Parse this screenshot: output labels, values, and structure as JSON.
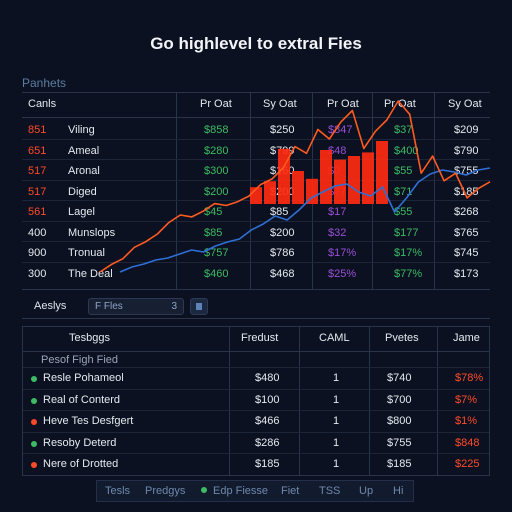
{
  "title": "Go highlevel to extral Fies",
  "section_label": "Panhets",
  "top_table": {
    "headers": [
      "Canls",
      "Pr Oat",
      "Sy Oat",
      "Pr Oat",
      "Pr Oat",
      "Sy Oat"
    ],
    "rows": [
      {
        "num": "851",
        "num_color": "#ff4a2a",
        "name": "Viling",
        "c1": "$858",
        "c1_color": "#3dbb63",
        "c2": "$250",
        "c3": "$847",
        "c3_color": "#9a4fd6",
        "c4": "$37",
        "c4_color": "#3dbb63",
        "c5": "$209"
      },
      {
        "num": "651",
        "num_color": "#ff4a2a",
        "name": "Ameal",
        "c1": "$280",
        "c1_color": "#3dbb63",
        "c2": "$799",
        "c3": "$48",
        "c3_color": "#9a4fd6",
        "c4": "$400",
        "c4_color": "#3dbb63",
        "c5": "$790"
      },
      {
        "num": "517",
        "num_color": "#ff4a2a",
        "name": "Aronal",
        "c1": "$300",
        "c1_color": "#3dbb63",
        "c2": "$160",
        "c3": "$0",
        "c3_color": "#9a4fd6",
        "c4": "$55",
        "c4_color": "#3dbb63",
        "c5": "$755"
      },
      {
        "num": "517",
        "num_color": "#ff4a2a",
        "name": "Diged",
        "c1": "$200",
        "c1_color": "#3dbb63",
        "c2": "$200",
        "c3": "$77",
        "c3_color": "#9a4fd6",
        "c4": "$71",
        "c4_color": "#3dbb63",
        "c5": "$185"
      },
      {
        "num": "561",
        "num_color": "#ff4a2a",
        "name": "Lagel",
        "c1": "$45",
        "c1_color": "#3dbb63",
        "c2": "$85",
        "c3": "$17",
        "c3_color": "#9a4fd6",
        "c4": "$55",
        "c4_color": "#3dbb63",
        "c5": "$268"
      },
      {
        "num": "400",
        "num_color": "#e6e9ef",
        "name": "Munslops",
        "c1": "$85",
        "c1_color": "#3dbb63",
        "c2": "$200",
        "c3": "$32",
        "c3_color": "#9a4fd6",
        "c4": "$177",
        "c4_color": "#3dbb63",
        "c5": "$765"
      },
      {
        "num": "900",
        "num_color": "#e6e9ef",
        "name": "Tronual",
        "c1": "$757",
        "c1_color": "#3dbb63",
        "c2": "$786",
        "c3": "$17%",
        "c3_color": "#9a4fd6",
        "c4": "$17%",
        "c4_color": "#3dbb63",
        "c5": "$745"
      },
      {
        "num": "300",
        "num_color": "#e6e9ef",
        "name": "The Deal",
        "c1": "$460",
        "c1_color": "#3dbb63",
        "c2": "$468",
        "c3": "$25%",
        "c3_color": "#9a4fd6",
        "c4": "$77%",
        "c4_color": "#3dbb63",
        "c5": "$173"
      }
    ]
  },
  "overlay_chart": {
    "bars": [
      28,
      38,
      92,
      55,
      42,
      90,
      74,
      80,
      86,
      105
    ],
    "orange_line": [
      0,
      8,
      14,
      26,
      32,
      40,
      52,
      60,
      58,
      64,
      72,
      70,
      74,
      80,
      92,
      98,
      110,
      132,
      125,
      150,
      140,
      158,
      170,
      130,
      148,
      160,
      180,
      166,
      104,
      122,
      96,
      104,
      78,
      88,
      95
    ],
    "blue_line": [
      0,
      5,
      8,
      12,
      14,
      18,
      22,
      20,
      26,
      30,
      33,
      42,
      48,
      56,
      52,
      62,
      74,
      80,
      86,
      88,
      80,
      76,
      85,
      60,
      74,
      90,
      98,
      102,
      100,
      97,
      102,
      104
    ],
    "colors": {
      "bars": "#ff2a10",
      "orange": "#ff5a1f",
      "blue": "#2f6fd6"
    }
  },
  "toolbar": {
    "label": "Aeslys",
    "select_value": "F Fles",
    "select_caret": "3"
  },
  "bottom_table": {
    "headers": [
      "Tesbggs",
      "Fredust",
      "CAML",
      "Pvetes",
      "Jame"
    ],
    "subheader": "Pesof Figh Fied",
    "rows": [
      {
        "dot": "#3dbb63",
        "name": "Resle Pohameol",
        "c1": "$480",
        "c2": "1",
        "c3": "$740",
        "c4": "$78%"
      },
      {
        "dot": "#3dbb63",
        "name": "Real of Conterd",
        "c1": "$100",
        "c2": "1",
        "c3": "$700",
        "c4": "$7%"
      },
      {
        "dot": "#ff4a2a",
        "name": "Heve Tes Desfgert",
        "c1": "$466",
        "c2": "1",
        "c3": "$800",
        "c4": "$1%"
      },
      {
        "dot": "#3dbb63",
        "name": "Resoby Deterd",
        "c1": "$286",
        "c2": "1",
        "c3": "$755",
        "c4": "$848"
      },
      {
        "dot": "#ff4a2a",
        "name": "Nere of Drotted",
        "c1": "$185",
        "c2": "1",
        "c3": "$185",
        "c4": "$225"
      }
    ]
  },
  "footer": {
    "items": [
      "Tesls",
      "Predgys",
      "Edp Fiesse",
      "Fiet",
      "TSS",
      "Up",
      "Hi"
    ],
    "dot_color": "#3dbb63"
  }
}
